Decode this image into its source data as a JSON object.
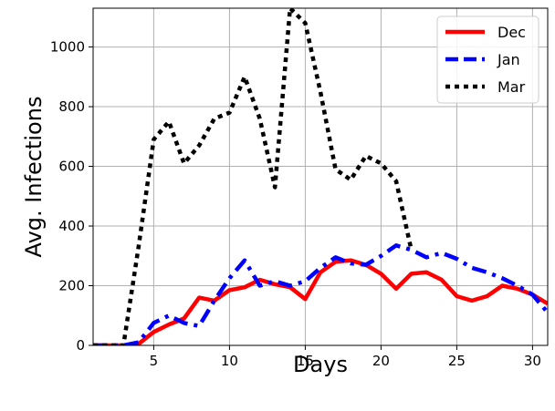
{
  "chart_data": {
    "type": "line",
    "xlabel": "Days",
    "ylabel": "Avg. Infections",
    "xlim": [
      1,
      31
    ],
    "ylim": [
      0,
      1130
    ],
    "xticks": [
      5,
      10,
      15,
      20,
      25,
      30
    ],
    "yticks": [
      0,
      200,
      400,
      600,
      800,
      1000
    ],
    "grid": true,
    "legend_position": "top-right",
    "x": [
      1,
      2,
      3,
      4,
      5,
      6,
      7,
      8,
      9,
      10,
      11,
      12,
      13,
      14,
      15,
      16,
      17,
      18,
      19,
      20,
      21,
      22,
      23,
      24,
      25,
      26,
      27,
      28,
      29,
      30,
      31
    ],
    "series": [
      {
        "name": "Dec",
        "color": "#ff0000",
        "dash": "solid",
        "values": [
          0,
          0,
          0,
          5,
          45,
          70,
          90,
          160,
          150,
          185,
          195,
          220,
          205,
          195,
          155,
          245,
          280,
          285,
          270,
          240,
          190,
          240,
          245,
          220,
          165,
          150,
          165,
          200,
          190,
          170,
          140
        ]
      },
      {
        "name": "Jan",
        "color": "#0000ff",
        "dash": "dashdot",
        "values": [
          0,
          0,
          0,
          10,
          75,
          100,
          75,
          65,
          150,
          225,
          285,
          200,
          215,
          200,
          215,
          260,
          295,
          275,
          270,
          300,
          335,
          320,
          295,
          310,
          290,
          260,
          245,
          225,
          200,
          170,
          110
        ]
      },
      {
        "name": "Mar",
        "color": "#000000",
        "dash": "dotted",
        "values": [
          0,
          0,
          0,
          330,
          690,
          750,
          610,
          670,
          760,
          780,
          900,
          760,
          530,
          1130,
          1080,
          850,
          590,
          555,
          635,
          610,
          550,
          320,
          null,
          null,
          null,
          null,
          null,
          null,
          null,
          null,
          null
        ]
      }
    ]
  }
}
